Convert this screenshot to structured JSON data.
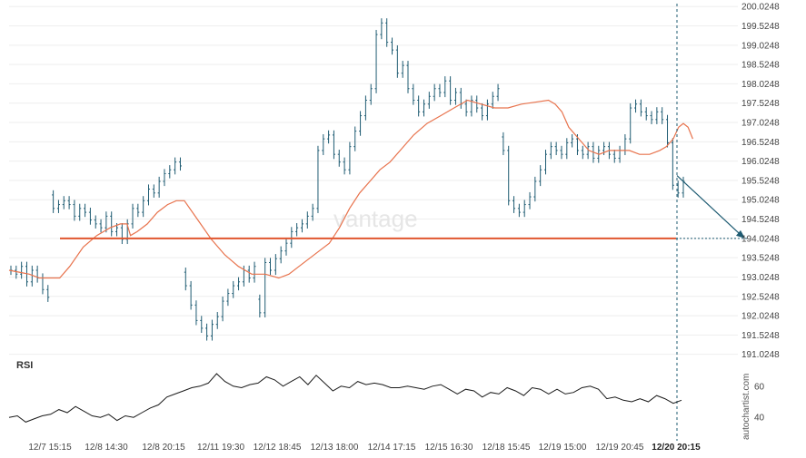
{
  "chart_data": {
    "type": "candlestick",
    "title": "",
    "x_tick_labels": [
      "12/7 15:15",
      "12/8 14:30",
      "12/8 20:15",
      "12/11 19:30",
      "12/12 18:45",
      "12/13 18:00",
      "12/14 17:15",
      "12/15 16:30",
      "12/18 15:45",
      "12/19 15:00",
      "12/19 20:45",
      "12/20 20:15"
    ],
    "highlighted_x_label": "12/20 20:15",
    "y_ticks": [
      "200.0248",
      "199.5248",
      "199.0248",
      "198.5248",
      "198.0248",
      "197.5248",
      "197.0248",
      "196.5248",
      "196.0248",
      "195.5248",
      "195.0248",
      "194.5248",
      "194.0248",
      "193.5248",
      "193.0248",
      "192.5248",
      "192.0248",
      "191.5248",
      "191.0248"
    ],
    "ylim": [
      190.9,
      200.1
    ],
    "price_close": [
      193.2,
      193.1,
      193.3,
      192.9,
      193.2,
      193.0,
      192.7,
      192.5,
      194.8,
      194.9,
      195.0,
      194.9,
      194.6,
      194.8,
      194.7,
      194.5,
      194.4,
      194.3,
      194.6,
      194.2,
      194.3,
      194.0,
      194.4,
      194.8,
      194.7,
      195.0,
      195.3,
      195.2,
      195.5,
      195.7,
      195.8,
      196.0,
      195.9,
      192.8,
      192.3,
      191.9,
      191.7,
      191.5,
      191.8,
      192.0,
      192.4,
      192.6,
      192.8,
      192.9,
      193.2,
      193.0,
      193.3,
      192.1,
      193.4,
      193.2,
      193.5,
      193.7,
      193.9,
      194.2,
      194.3,
      194.4,
      194.6,
      194.8,
      196.3,
      196.6,
      196.7,
      196.2,
      196.0,
      195.8,
      196.4,
      196.8,
      197.2,
      197.6,
      197.9,
      199.3,
      199.6,
      199.1,
      198.9,
      198.3,
      198.5,
      197.9,
      197.6,
      197.3,
      197.5,
      197.7,
      197.9,
      197.8,
      198.1,
      197.6,
      197.8,
      197.5,
      197.3,
      197.6,
      197.4,
      197.2,
      197.5,
      197.7,
      197.9,
      196.3,
      195.0,
      194.8,
      194.7,
      194.9,
      195.1,
      195.5,
      195.8,
      196.2,
      196.4,
      196.3,
      196.2,
      196.5,
      196.6,
      196.3,
      196.2,
      196.4,
      196.1,
      196.3,
      196.4,
      196.2,
      196.1,
      196.3,
      196.6,
      197.4,
      197.5,
      197.3,
      197.2,
      197.1,
      197.3,
      197.1,
      196.5,
      195.4,
      195.2,
      195.5
    ],
    "moving_average": [
      193.2,
      193.15,
      193.1,
      193.0,
      193.0,
      193.0,
      193.3,
      193.8,
      194.1,
      194.3,
      194.4,
      194.4,
      194.1,
      194.2,
      194.4,
      194.7,
      194.9,
      195.0,
      195.0,
      194.5,
      194.0,
      193.6,
      193.3,
      193.1,
      193.1,
      193.0,
      193.1,
      193.3,
      193.5,
      193.7,
      193.9,
      194.3,
      194.8,
      195.2,
      195.5,
      195.8,
      196.0,
      196.3,
      196.7,
      197.0,
      197.2,
      197.4,
      197.6,
      197.5,
      197.4,
      197.4,
      197.5,
      197.55,
      197.6,
      197.5,
      197.3,
      196.9,
      196.6,
      196.3,
      196.2,
      196.3,
      196.3,
      196.3,
      196.2,
      196.2,
      196.3,
      196.4,
      196.6,
      196.9,
      197.0,
      196.9,
      196.6
    ],
    "moving_average_x_fraction": [
      0,
      0.015,
      0.03,
      0.045,
      0.06,
      0.075,
      0.09,
      0.11,
      0.13,
      0.15,
      0.165,
      0.175,
      0.18,
      0.19,
      0.205,
      0.22,
      0.235,
      0.248,
      0.26,
      0.28,
      0.3,
      0.32,
      0.34,
      0.36,
      0.38,
      0.4,
      0.415,
      0.43,
      0.445,
      0.46,
      0.475,
      0.49,
      0.505,
      0.52,
      0.535,
      0.55,
      0.565,
      0.58,
      0.6,
      0.62,
      0.64,
      0.66,
      0.68,
      0.7,
      0.72,
      0.74,
      0.76,
      0.78,
      0.8,
      0.81,
      0.82,
      0.83,
      0.845,
      0.86,
      0.875,
      0.89,
      0.905,
      0.92,
      0.935,
      0.95,
      0.965,
      0.975,
      0.985,
      0.993,
      1.0,
      1.007,
      1.014
    ],
    "support_level": 194.0248,
    "support_label": "194.0248",
    "forecast_arrow_end": 194.0248,
    "rsi": {
      "label": "RSI",
      "y_ticks": [
        "60",
        "40"
      ],
      "ylim": [
        25,
        75
      ],
      "values": [
        40,
        41,
        37,
        39,
        41,
        42,
        45,
        43,
        47,
        44,
        41,
        40,
        42,
        38,
        41,
        40,
        43,
        46,
        48,
        53,
        55,
        57,
        59,
        60,
        62,
        68,
        63,
        60,
        59,
        61,
        62,
        66,
        64,
        60,
        63,
        66,
        61,
        67,
        62,
        57,
        60,
        59,
        63,
        61,
        62,
        61,
        59,
        59,
        60,
        59,
        58,
        60,
        61,
        58,
        55,
        58,
        57,
        53,
        56,
        55,
        59,
        57,
        54,
        59,
        58,
        55,
        58,
        55,
        56,
        59,
        60,
        58,
        52,
        53,
        51,
        50,
        52,
        50,
        54,
        52,
        49,
        51
      ]
    },
    "brand_text": "autochartist.com",
    "watermark_text": "vantage"
  },
  "colors": {
    "candle": "#1e5b72",
    "moving_average": "#e8734d",
    "support": "#e0562f",
    "arrow": "#1e5b72",
    "rsi_line": "#1a1a1a",
    "grid": "#eeeeee"
  }
}
